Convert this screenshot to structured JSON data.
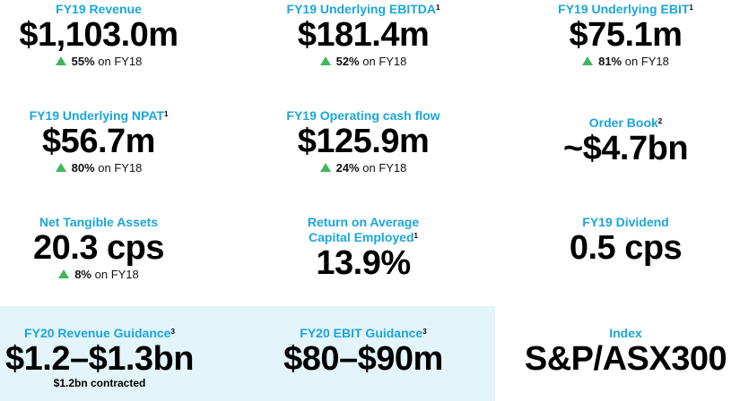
{
  "metrics": [
    {
      "label": "FY19 Revenue",
      "sup": "",
      "value": "$1,103.0m",
      "change_pct": "55%",
      "change_suffix": "on FY18"
    },
    {
      "label": "FY19 Underlying EBITDA",
      "sup": "1",
      "value": "$181.4m",
      "change_pct": "52%",
      "change_suffix": "on FY18"
    },
    {
      "label": "FY19 Underlying EBIT",
      "sup": "1",
      "value": "$75.1m",
      "change_pct": "81%",
      "change_suffix": "on FY18"
    },
    {
      "label": "FY19 Underlying NPAT",
      "sup": "1",
      "value": "$56.7m",
      "change_pct": "80%",
      "change_suffix": "on FY18"
    },
    {
      "label": "FY19 Operating cash flow",
      "sup": "",
      "value": "$125.9m",
      "change_pct": "24%",
      "change_suffix": "on FY18"
    },
    {
      "label": "Order Book",
      "sup": "2",
      "value": "~$4.7bn"
    },
    {
      "label": "Net Tangible Assets",
      "sup": "",
      "value": "20.3 cps",
      "change_pct": "8%",
      "change_suffix": "on FY18"
    },
    {
      "label_line1": "Return on Average",
      "label_line2": "Capital Employed",
      "sup": "1",
      "value": "13.9%"
    },
    {
      "label": "FY19 Dividend",
      "sup": "",
      "value": "0.5 cps"
    },
    {
      "label": "FY20 Revenue Guidance",
      "sup": "3",
      "value": "$1.2–$1.3bn",
      "note": "$1.2bn contracted"
    },
    {
      "label": "FY20 EBIT Guidance",
      "sup": "3",
      "value": "$80–$90m"
    },
    {
      "label": "Index",
      "sup": "",
      "value": "S&P/ASX300"
    }
  ],
  "colors": {
    "label": "#1aa6d9",
    "up_arrow": "#41b65a",
    "guidance_bg": "#e3f4fb"
  },
  "icons": {
    "change_indicator": "up-triangle-icon"
  }
}
